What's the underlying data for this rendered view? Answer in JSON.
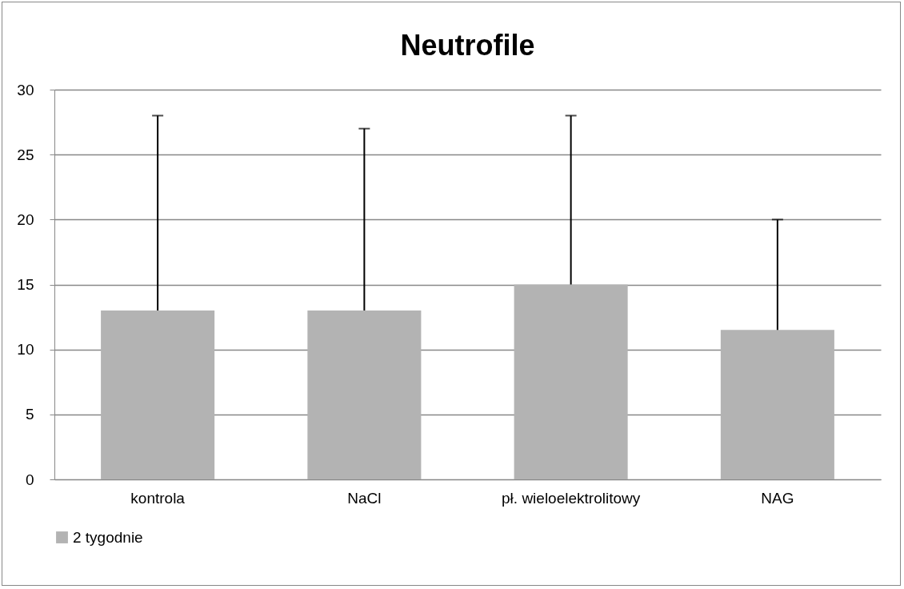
{
  "chart_data": {
    "type": "bar",
    "title": "Neutrofile",
    "categories": [
      "kontrola",
      "NaCl",
      "pł. wieloelektrolitowy",
      "NAG"
    ],
    "series": [
      {
        "name": "2 tygodnie",
        "color": "#b3b3b3",
        "values": [
          13,
          13,
          15,
          11.5
        ],
        "errors": [
          [
            13,
            28
          ],
          [
            13,
            27
          ],
          [
            15,
            28
          ],
          [
            11.5,
            20
          ]
        ]
      }
    ],
    "ylim": [
      0,
      30
    ],
    "yticks": [
      0,
      5,
      10,
      15,
      20,
      25,
      30
    ],
    "grid": "y",
    "legend": "bottom"
  }
}
